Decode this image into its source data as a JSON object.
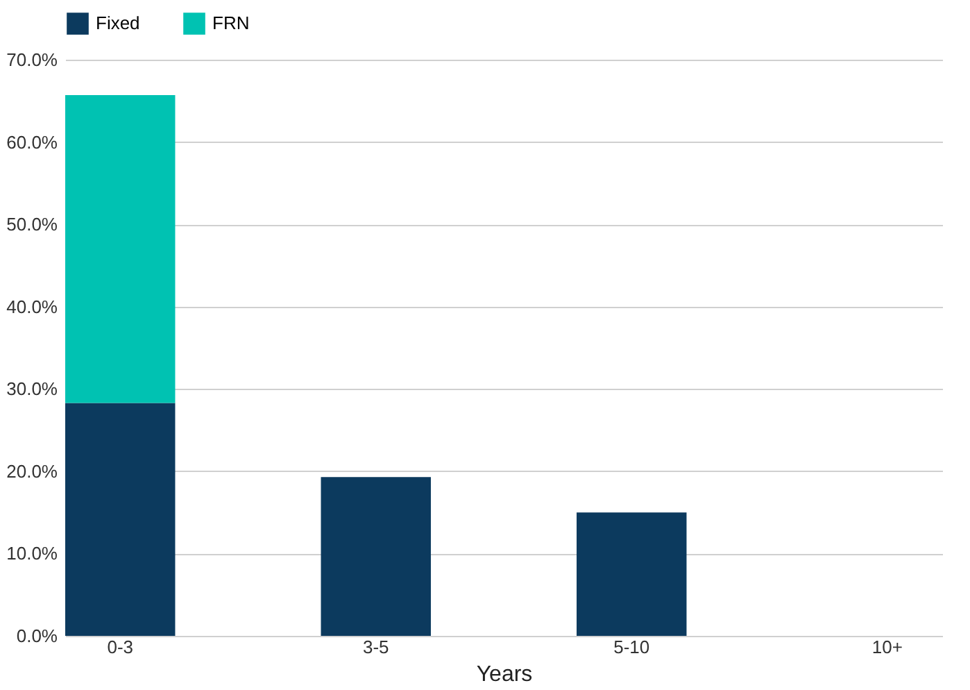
{
  "chart_data": {
    "type": "bar",
    "stacked": true,
    "xlabel": "Years",
    "categories": [
      "0-3",
      "3-5",
      "5-10",
      "10+"
    ],
    "series": [
      {
        "name": "Fixed",
        "color": "#0c3a5e",
        "values": [
          28.3,
          19.3,
          15.0,
          0
        ]
      },
      {
        "name": "FRN",
        "color": "#00c2b2",
        "values": [
          37.4,
          0,
          0,
          0
        ]
      }
    ],
    "ylim": [
      0,
      70
    ],
    "yticks": [
      {
        "value": 0,
        "label": "0.0%"
      },
      {
        "value": 10,
        "label": "10.0%"
      },
      {
        "value": 20,
        "label": "20.0%"
      },
      {
        "value": 30,
        "label": "30.0%"
      },
      {
        "value": 40,
        "label": "40.0%"
      },
      {
        "value": 50,
        "label": "50.0%"
      },
      {
        "value": 60,
        "label": "60.0%"
      },
      {
        "value": 70,
        "label": "70.0%"
      }
    ],
    "grid": "y",
    "legend": "top"
  }
}
